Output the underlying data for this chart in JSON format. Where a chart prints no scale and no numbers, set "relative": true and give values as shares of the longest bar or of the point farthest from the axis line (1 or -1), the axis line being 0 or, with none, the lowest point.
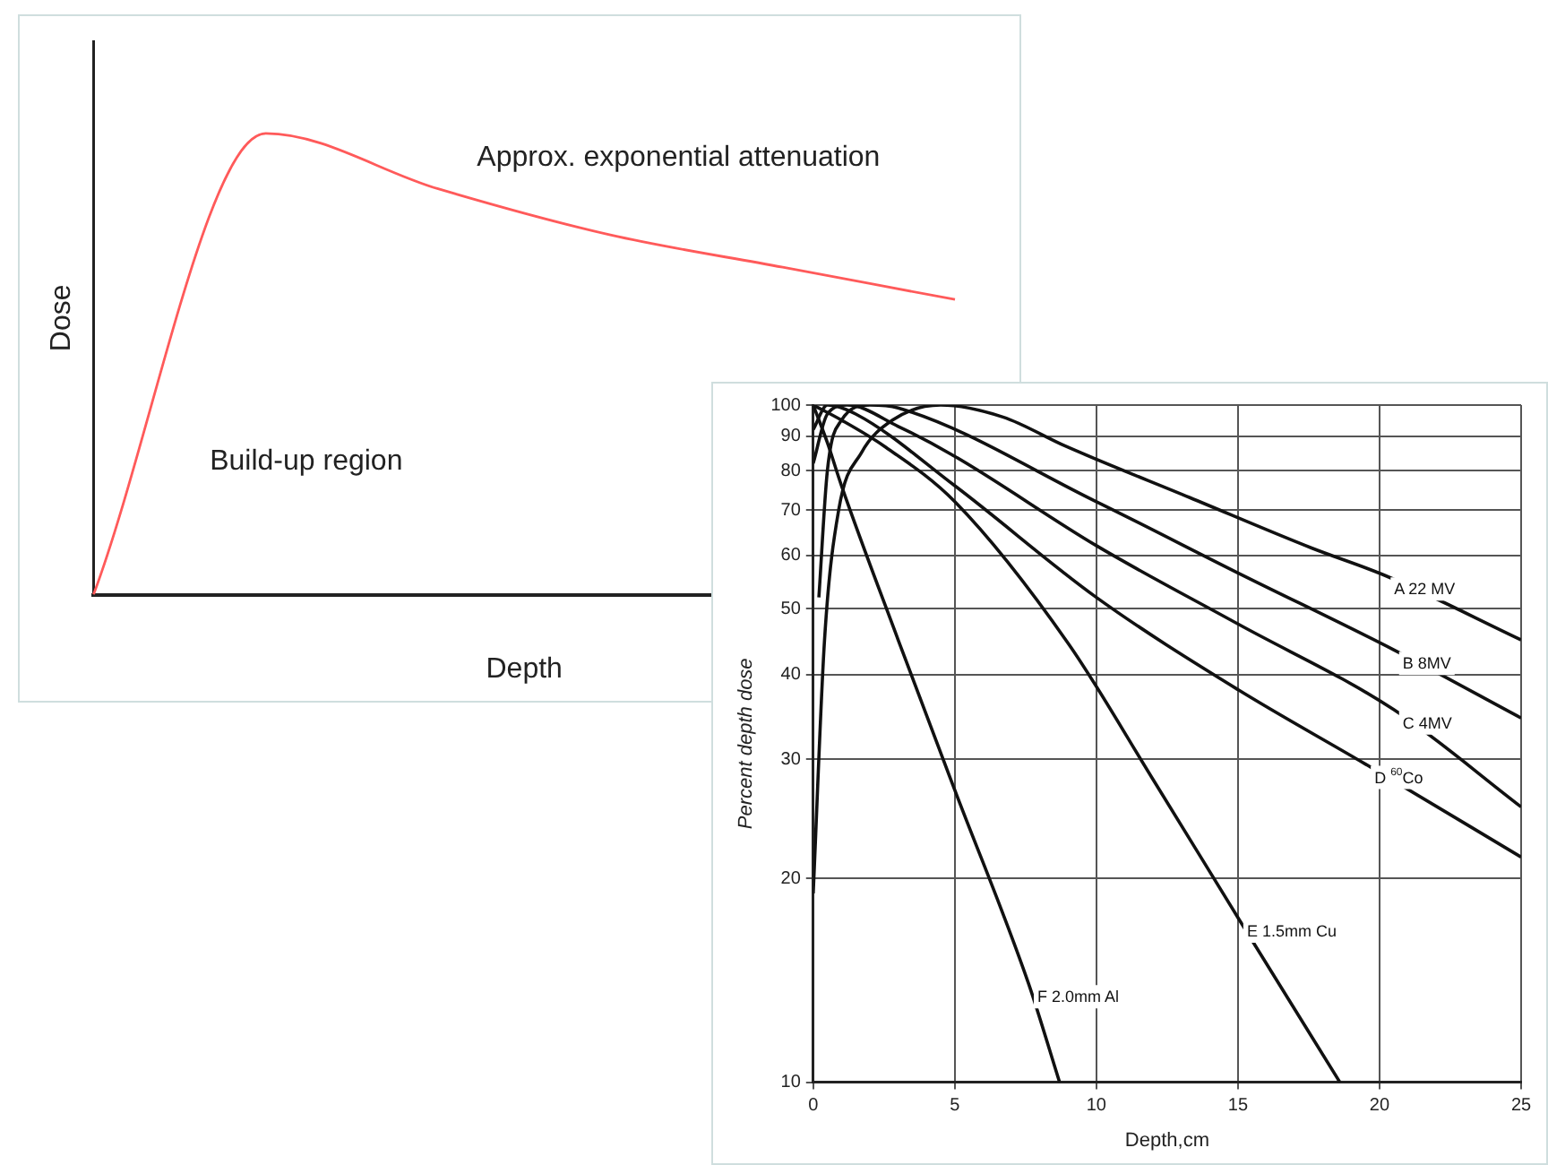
{
  "chart_data": [
    {
      "type": "line",
      "relative": true,
      "xlabel": "Depth",
      "ylabel": "Dose",
      "annotations": [
        "Approx. exponential attenuation",
        "Build-up region"
      ],
      "categories": [
        null,
        null,
        null,
        null,
        null,
        null
      ],
      "series": [
        {
          "color": "#ff5a5a",
          "values": [
            0,
            1,
            0.88,
            0.78,
            0.71,
            0.64
          ]
        }
      ],
      "grid": false,
      "legend": false,
      "marker": "none"
    },
    {
      "type": "line",
      "xlabel": "Depth,cm",
      "ylabel": "Percent depth dose",
      "log": "y",
      "xlim": [
        0,
        25
      ],
      "xticks": [
        0,
        5,
        10,
        15,
        20,
        25
      ],
      "ylim": [
        10,
        100
      ],
      "yticks": [
        10,
        20,
        30,
        40,
        50,
        60,
        70,
        80,
        90,
        100
      ],
      "grid": true,
      "legend": false,
      "marker": "none",
      "series": [
        {
          "name": "A 22 MV",
          "color": "#111111",
          "x": [
            0,
            0.4,
            0.9,
            1.7,
            2.8,
            4.5,
            6.7,
            8.9,
            13.3,
            17.6,
            20.2,
            25
          ],
          "values": [
            19,
            45,
            70,
            85,
            95,
            100,
            96,
            87,
            73,
            61.5,
            56,
            45
          ]
        },
        {
          "name": "B 8MV",
          "color": "#111111",
          "x": [
            0.2,
            0.5,
            1,
            2,
            3,
            10,
            15,
            20.5,
            25
          ],
          "values": [
            52,
            80,
            95,
            100,
            99,
            72,
            56.5,
            43.5,
            34.5
          ]
        },
        {
          "name": "C 4MV",
          "color": "#111111",
          "x": [
            0,
            0.5,
            1.2,
            3,
            5,
            10,
            15,
            20.5,
            25
          ],
          "values": [
            82,
            97,
            100,
            93,
            84,
            62,
            47.5,
            35.5,
            25.5
          ]
        },
        {
          "name": "D $^{60}$Co",
          "color": "#111111",
          "x": [
            0,
            0.5,
            1.5,
            5,
            10,
            15,
            19.5,
            25
          ],
          "values": [
            92,
            100,
            97,
            76,
            52,
            38,
            29.5,
            21.5
          ]
        },
        {
          "name": "E 1.5mm Cu",
          "color": "#111111",
          "x": [
            0,
            1,
            2.5,
            5,
            9,
            12,
            15,
            18.6
          ],
          "values": [
            100,
            95,
            87,
            72,
            44.5,
            28,
            17.5,
            10
          ]
        },
        {
          "name": "F 2.0mm Al",
          "color": "#111111",
          "x": [
            0,
            0.5,
            1,
            3,
            5,
            7.6,
            8.7
          ],
          "values": [
            100,
            88,
            76,
            45,
            27,
            14,
            10
          ]
        }
      ]
    }
  ]
}
